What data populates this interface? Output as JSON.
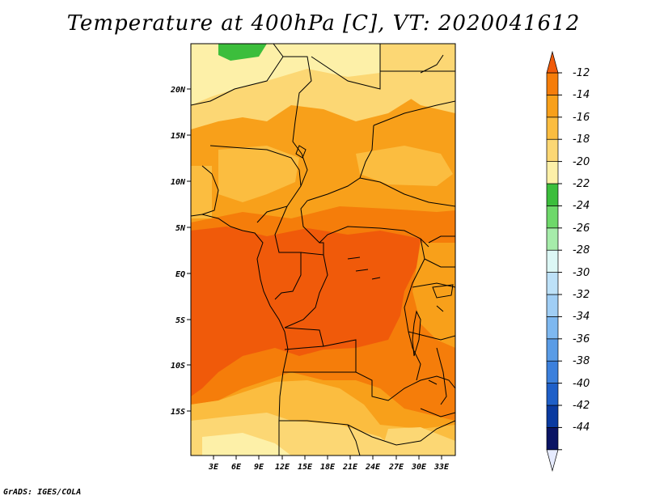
{
  "title": "Temperature at 400hPa [C], VT: 2020041612",
  "credit": "GrADS: IGES/COLA",
  "map": {
    "lat_labels": [
      "20N",
      "15N",
      "10N",
      "5N",
      "EQ",
      "5S",
      "10S",
      "15S"
    ],
    "lon_labels": [
      "3E",
      "6E",
      "9E",
      "12E",
      "15E",
      "18E",
      "21E",
      "24E",
      "27E",
      "30E",
      "33E"
    ]
  },
  "colorbar": {
    "labels": [
      "-12",
      "-14",
      "-16",
      "-18",
      "-20",
      "-22",
      "-24",
      "-26",
      "-28",
      "-30",
      "-32",
      "-34",
      "-36",
      "-38",
      "-40",
      "-42",
      "-44"
    ],
    "colors": [
      "#f05a0a",
      "#f57d0a",
      "#f8a01a",
      "#fbbd40",
      "#fcd774",
      "#fdf0a8",
      "#3cbe3c",
      "#6ed86a",
      "#a6ecaa",
      "#dcf7f5",
      "#bde1f8",
      "#a0cef5",
      "#7eb8f0",
      "#5a9ce6",
      "#3c80dc",
      "#1e5fc8",
      "#0a3aa0",
      "#0a1464",
      "#e6ebff"
    ]
  }
}
